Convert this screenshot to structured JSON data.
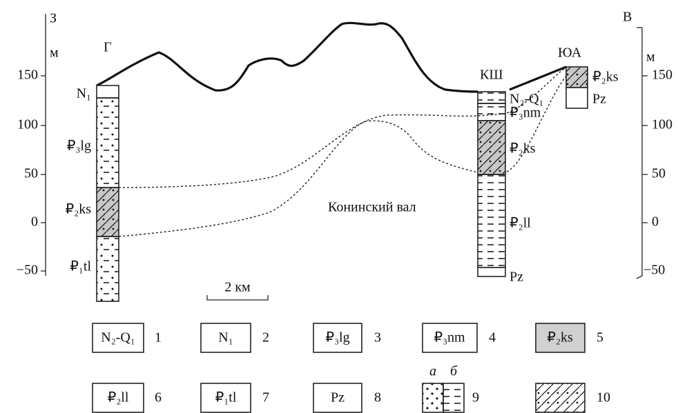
{
  "header": {
    "west": "З",
    "east": "В"
  },
  "axes": {
    "left": {
      "unit": "м",
      "ticks": [
        "150",
        "100",
        "50",
        "0",
        "−50"
      ]
    },
    "right": {
      "unit": "м",
      "ticks": [
        "150",
        "100",
        "50",
        "0",
        "−50"
      ]
    }
  },
  "wells": [
    {
      "label": "Г",
      "units": [
        "N₁",
        "₽₃lg",
        "₽₂ks",
        "₽₁tl"
      ]
    },
    {
      "label": "КШ",
      "units": [
        "N₂-Q₁",
        "₽₃nm",
        "₽₂ks",
        "₽₂ll",
        "Pz"
      ]
    },
    {
      "label": "ЮА",
      "units": [
        "₽₂ks",
        "Pz"
      ]
    }
  ],
  "annotations": {
    "structure": "Конинский вал",
    "scale": "2 км"
  },
  "legend": [
    {
      "code": "N₂-Q₁",
      "number": "1"
    },
    {
      "code": "N₁",
      "number": "2"
    },
    {
      "code": "₽₃lg",
      "number": "3"
    },
    {
      "code": "₽₃nm",
      "number": "4"
    },
    {
      "code": "₽₂ks",
      "number": "5"
    },
    {
      "code": "₽₂ll",
      "number": "6"
    },
    {
      "code": "₽₁tl",
      "number": "7"
    },
    {
      "code": "Pz",
      "number": "8"
    },
    {
      "number": "9",
      "parts": [
        "а",
        "б"
      ]
    },
    {
      "number": "10"
    }
  ]
}
